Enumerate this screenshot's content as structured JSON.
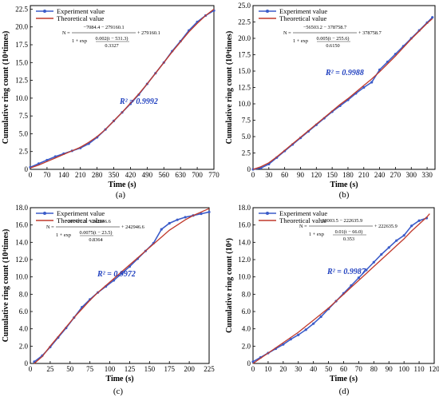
{
  "chart_data": [
    {
      "type": "line",
      "caption": "(a)",
      "xlabel": "Time (s)",
      "ylabel": "Cumulative ring count (10⁴times)",
      "xlim": [
        0,
        770
      ],
      "ylim": [
        0,
        23
      ],
      "xticks": [
        0,
        70,
        140,
        210,
        280,
        350,
        420,
        490,
        560,
        630,
        700,
        770
      ],
      "yticks": [
        0,
        2.5,
        5.0,
        7.5,
        10.0,
        12.5,
        15.0,
        17.5,
        20.0,
        22.5
      ],
      "legend": [
        "Experiment value",
        "Theoretical value"
      ],
      "equation": {
        "n_prefix": "N =",
        "numerator": "−7084.4 − 279160.1",
        "denominator_a": "1 + exp",
        "bracket_top": "0.002(t − 531.3)",
        "bracket_bottom": "0.3327",
        "tail": "+ 279160.1"
      },
      "r2": "R² = 0.9992",
      "series": [
        {
          "name": "Experiment value",
          "x": [
            0,
            35,
            70,
            105,
            140,
            175,
            210,
            245,
            280,
            315,
            350,
            385,
            420,
            455,
            490,
            525,
            560,
            595,
            630,
            665,
            700,
            735,
            770
          ],
          "y": [
            0.3,
            0.8,
            1.3,
            1.8,
            2.2,
            2.6,
            3.0,
            3.6,
            4.5,
            5.6,
            6.8,
            8.0,
            9.2,
            10.5,
            12.0,
            13.5,
            15.0,
            16.6,
            18.0,
            19.5,
            20.7,
            21.6,
            22.3
          ]
        },
        {
          "name": "Theoretical value",
          "x": [
            0,
            35,
            70,
            105,
            140,
            175,
            210,
            245,
            280,
            315,
            350,
            385,
            420,
            455,
            490,
            525,
            560,
            595,
            630,
            665,
            700,
            735,
            770
          ],
          "y": [
            0.2,
            0.6,
            1.1,
            1.6,
            2.1,
            2.6,
            3.1,
            3.8,
            4.6,
            5.6,
            6.8,
            8.0,
            9.3,
            10.6,
            12.0,
            13.5,
            15.0,
            16.5,
            17.9,
            19.3,
            20.5,
            21.6,
            22.5
          ]
        }
      ]
    },
    {
      "type": "line",
      "caption": "(b)",
      "xlabel": "Time (s)",
      "ylabel": "Cumulative ring count (10⁴times)",
      "xlim": [
        0,
        345
      ],
      "ylim": [
        0,
        25
      ],
      "xticks": [
        0,
        30,
        60,
        90,
        120,
        150,
        180,
        210,
        240,
        270,
        300,
        330
      ],
      "yticks": [
        0,
        2.5,
        5.0,
        7.5,
        10.0,
        12.5,
        15.0,
        17.5,
        20.0,
        22.5,
        25.0
      ],
      "legend": [
        "Experiment value",
        "Theoretical value"
      ],
      "equation": {
        "n_prefix": "N =",
        "numerator": "−56503.2 − 378758.7",
        "denominator_a": "1 + exp",
        "bracket_top": "0.005(t − 255.6)",
        "bracket_bottom": "0.6150",
        "tail": "+ 378758.7"
      },
      "r2": "R² = 0.9988",
      "series": [
        {
          "name": "Experiment value",
          "x": [
            0,
            15,
            30,
            45,
            60,
            75,
            90,
            105,
            120,
            135,
            150,
            165,
            180,
            195,
            210,
            225,
            240,
            255,
            270,
            285,
            300,
            315,
            330,
            340
          ],
          "y": [
            0.0,
            0.2,
            0.8,
            1.8,
            2.8,
            3.8,
            4.8,
            5.8,
            6.8,
            7.8,
            8.8,
            9.7,
            10.6,
            11.6,
            12.5,
            13.3,
            15.2,
            16.4,
            17.6,
            18.8,
            20.0,
            21.2,
            22.4,
            23.2
          ]
        },
        {
          "name": "Theoretical value",
          "x": [
            0,
            15,
            30,
            45,
            60,
            75,
            90,
            105,
            120,
            135,
            150,
            165,
            180,
            195,
            210,
            225,
            240,
            255,
            270,
            285,
            300,
            315,
            330,
            340
          ],
          "y": [
            0.0,
            0.4,
            1.0,
            1.9,
            2.9,
            3.9,
            4.9,
            5.9,
            6.9,
            7.9,
            8.9,
            9.9,
            10.8,
            11.8,
            12.8,
            13.8,
            14.9,
            16.1,
            17.3,
            18.6,
            19.9,
            21.1,
            22.3,
            23.0
          ]
        }
      ]
    },
    {
      "type": "line",
      "caption": "(c)",
      "xlabel": "Time (s)",
      "ylabel": "Cumulative ring count (10⁴times)",
      "xlim": [
        0,
        225
      ],
      "ylim": [
        0,
        18
      ],
      "xticks": [
        0,
        25,
        50,
        75,
        100,
        125,
        150,
        175,
        200,
        225
      ],
      "yticks": [
        0,
        2.0,
        4.0,
        6.0,
        8.0,
        10.0,
        12.0,
        14.0,
        16.0,
        18.0
      ],
      "legend": [
        "Experiment value",
        "Theoretical value"
      ],
      "equation": {
        "n_prefix": "N =",
        "numerator": "−207471.3 − 242946.6",
        "denominator_a": "1 + exp",
        "bracket_top": "0.0075(t − 23.5)",
        "bracket_bottom": "0.8364",
        "tail": "+ 242946.6"
      },
      "r2": "R² = 0.9972",
      "series": [
        {
          "name": "Experiment value",
          "x": [
            5,
            15,
            25,
            35,
            45,
            55,
            65,
            75,
            85,
            95,
            105,
            115,
            125,
            135,
            145,
            155,
            165,
            175,
            185,
            195,
            205,
            215,
            225
          ],
          "y": [
            0.2,
            0.9,
            1.9,
            3.0,
            4.1,
            5.3,
            6.5,
            7.4,
            8.2,
            8.9,
            9.6,
            10.4,
            11.2,
            12.1,
            13.0,
            13.9,
            15.5,
            16.2,
            16.6,
            16.9,
            17.1,
            17.3,
            17.5
          ]
        },
        {
          "name": "Theoretical value",
          "x": [
            5,
            15,
            25,
            35,
            45,
            55,
            65,
            75,
            85,
            95,
            105,
            115,
            125,
            135,
            145,
            155,
            165,
            175,
            185,
            195,
            205,
            215,
            225
          ],
          "y": [
            0.0,
            0.8,
            2.0,
            3.1,
            4.2,
            5.3,
            6.3,
            7.3,
            8.2,
            9.0,
            9.8,
            10.6,
            11.4,
            12.2,
            13.0,
            13.8,
            14.6,
            15.4,
            16.0,
            16.6,
            17.1,
            17.5,
            17.9
          ]
        }
      ]
    },
    {
      "type": "line",
      "caption": "(d)",
      "xlabel": "Time (s)",
      "ylabel": "Cumulative ring count (10⁴)",
      "xlim": [
        0,
        120
      ],
      "ylim": [
        0,
        18
      ],
      "xticks": [
        0,
        10,
        20,
        30,
        40,
        50,
        60,
        70,
        80,
        90,
        100,
        110,
        120
      ],
      "yticks": [
        0,
        2.0,
        4.0,
        6.0,
        8.0,
        10.0,
        12.0,
        14.0,
        16.0,
        18.0
      ],
      "legend": [
        "Experiment value",
        "Theoretical value"
      ],
      "equation": {
        "n_prefix": "N =",
        "numerator": "−32003.5 − 222635.9",
        "denominator_a": "1 + exp",
        "bracket_top": "0.01(t − 66.0)",
        "bracket_bottom": "0.353",
        "tail": "+ 222635.9"
      },
      "r2": "R² = 0.9987",
      "series": [
        {
          "name": "Experiment value",
          "x": [
            0,
            5,
            10,
            15,
            20,
            25,
            30,
            35,
            40,
            45,
            50,
            55,
            60,
            65,
            70,
            75,
            80,
            85,
            90,
            95,
            100,
            105,
            110,
            115
          ],
          "y": [
            0.2,
            0.7,
            1.2,
            1.7,
            2.2,
            2.8,
            3.3,
            3.9,
            4.6,
            5.4,
            6.3,
            7.2,
            8.1,
            9.0,
            9.9,
            10.8,
            11.7,
            12.6,
            13.4,
            14.2,
            14.8,
            15.9,
            16.5,
            16.8
          ]
        },
        {
          "name": "Theoretical value",
          "x": [
            0,
            5,
            10,
            15,
            20,
            25,
            30,
            35,
            40,
            45,
            50,
            55,
            60,
            65,
            70,
            75,
            80,
            85,
            90,
            95,
            100,
            105,
            110,
            115,
            117
          ],
          "y": [
            0.0,
            0.6,
            1.2,
            1.8,
            2.4,
            3.0,
            3.6,
            4.3,
            5.0,
            5.7,
            6.4,
            7.2,
            8.0,
            8.8,
            9.6,
            10.4,
            11.2,
            12.0,
            12.8,
            13.6,
            14.4,
            15.3,
            16.1,
            16.9,
            17.3
          ]
        }
      ]
    }
  ],
  "colors": {
    "experiment": "#3b5cc9",
    "theoretical": "#c0392b",
    "axis": "#000000",
    "r2": "#1f3fbf"
  }
}
